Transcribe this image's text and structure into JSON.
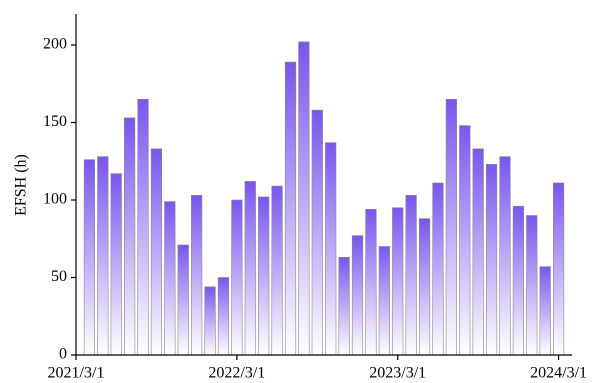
{
  "chart_data": {
    "type": "bar",
    "y_label": "EFSH (h)",
    "x": [
      1,
      2,
      3,
      4,
      5,
      6,
      7,
      8,
      9,
      10,
      11,
      12,
      13,
      14,
      15,
      16,
      17,
      18,
      19,
      20,
      21,
      22,
      23,
      24,
      25,
      26,
      27,
      28,
      29,
      30,
      31,
      32,
      33,
      34,
      35,
      36
    ],
    "values": [
      126,
      128,
      117,
      153,
      165,
      133,
      99,
      71,
      103,
      44,
      50,
      100,
      112,
      102,
      109,
      189,
      202,
      158,
      137,
      63,
      77,
      94,
      70,
      95,
      103,
      88,
      111,
      165,
      148,
      133,
      123,
      128,
      96,
      90,
      57,
      111
    ],
    "color": "#7a55f0",
    "xlim": [
      0,
      37
    ],
    "xticks": [
      {
        "value": 0,
        "label": "2021/3/1"
      },
      {
        "value": 12,
        "label": "2022/3/1"
      },
      {
        "value": 24,
        "label": "2023/3/1"
      },
      {
        "value": 36,
        "label": "2024/3/1"
      }
    ],
    "ylim": [
      0,
      220
    ],
    "yticks": [
      0,
      50,
      100,
      150,
      200
    ]
  }
}
